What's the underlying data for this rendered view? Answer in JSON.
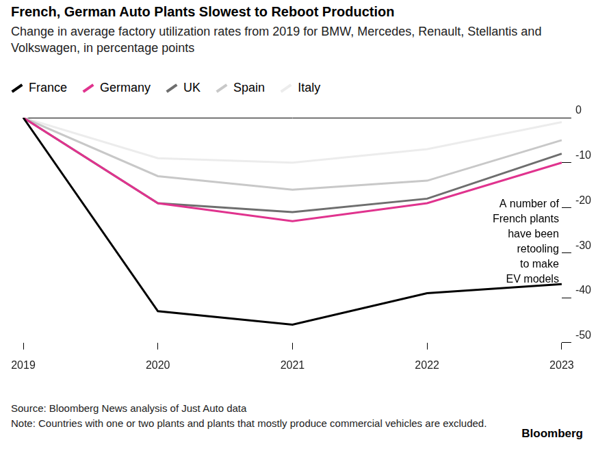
{
  "chart_data": {
    "type": "line",
    "title": "French, German Auto Plants Slowest to Reboot Production",
    "subtitle": "Change in average factory utilization rates from 2019 for BMW, Mercedes, Renault, Stellantis and Volkswagen, in percentage points",
    "categories": [
      "2019",
      "2020",
      "2021",
      "2022",
      "2023"
    ],
    "series": [
      {
        "name": "France",
        "color": "#000000",
        "values": [
          0,
          -43,
          -46,
          -39,
          -37
        ]
      },
      {
        "name": "Germany",
        "color": "#e0338e",
        "values": [
          0,
          -19,
          -23,
          -19,
          -10
        ]
      },
      {
        "name": "UK",
        "color": "#6e6e6e",
        "values": [
          0,
          -19,
          -21,
          -18,
          -8
        ]
      },
      {
        "name": "Spain",
        "color": "#c8c8c8",
        "values": [
          0,
          -13,
          -16,
          -14,
          -5
        ]
      },
      {
        "name": "Italy",
        "color": "#ececec",
        "values": [
          0,
          -9,
          -10,
          -7,
          -1
        ]
      }
    ],
    "ylim": [
      -50,
      0
    ],
    "yticks": [
      -50,
      -40,
      -30,
      -20,
      -10,
      0
    ],
    "grid": true,
    "legend": "top-left",
    "annotation": [
      "A number of",
      "French plants",
      "have been",
      "retooling",
      "to make",
      "EV models"
    ],
    "source": "Source: Bloomberg News analysis of Just Auto data",
    "note": "Note: Countries with one or two plants and plants that mostly produce commercial vehicles are excluded.",
    "credit": "Bloomberg"
  }
}
